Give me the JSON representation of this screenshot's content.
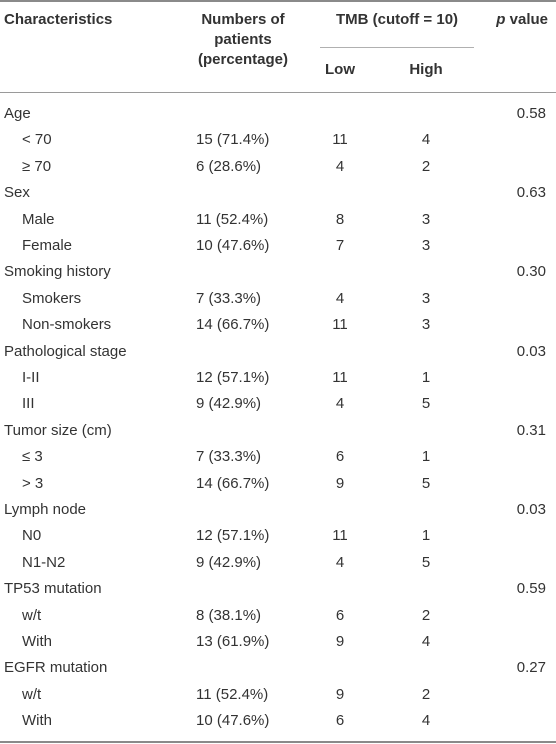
{
  "header": {
    "characteristics": "Characteristics",
    "numbers_line1": "Numbers of",
    "numbers_line2": "patients",
    "numbers_line3": "(percentage)",
    "tmb": "TMB (cutoff = 10)",
    "low": "Low",
    "high": "High",
    "p_italic": "p",
    "p_rest": " value"
  },
  "rows": [
    {
      "type": "group",
      "label": "Age",
      "p": "0.58"
    },
    {
      "type": "sub",
      "label": "< 70",
      "num": "15 (71.4%)",
      "low": "11",
      "high": "4"
    },
    {
      "type": "sub",
      "label": "≥ 70",
      "num": "6 (28.6%)",
      "low": "4",
      "high": "2"
    },
    {
      "type": "group",
      "label": "Sex",
      "p": "0.63"
    },
    {
      "type": "sub",
      "label": "Male",
      "num": "11 (52.4%)",
      "low": "8",
      "high": "3"
    },
    {
      "type": "sub",
      "label": "Female",
      "num": "10 (47.6%)",
      "low": "7",
      "high": "3"
    },
    {
      "type": "group",
      "label": "Smoking history",
      "p": "0.30"
    },
    {
      "type": "sub",
      "label": "Smokers",
      "num": "7 (33.3%)",
      "low": "4",
      "high": "3"
    },
    {
      "type": "sub",
      "label": "Non-smokers",
      "num": "14 (66.7%)",
      "low": "11",
      "high": "3"
    },
    {
      "type": "group",
      "label": "Pathological stage",
      "p": "0.03"
    },
    {
      "type": "sub",
      "label": "I-II",
      "num": "12 (57.1%)",
      "low": "11",
      "high": "1"
    },
    {
      "type": "sub",
      "label": "III",
      "num": "9 (42.9%)",
      "low": "4",
      "high": "5"
    },
    {
      "type": "group",
      "label": "Tumor size (cm)",
      "p": "0.31"
    },
    {
      "type": "sub",
      "label": "≤ 3",
      "num": "7 (33.3%)",
      "low": "6",
      "high": "1"
    },
    {
      "type": "sub",
      "label": "> 3",
      "num": "14 (66.7%)",
      "low": "9",
      "high": "5"
    },
    {
      "type": "group",
      "label": "Lymph node",
      "p": "0.03"
    },
    {
      "type": "sub",
      "label": "N0",
      "num": "12 (57.1%)",
      "low": "11",
      "high": "1"
    },
    {
      "type": "sub",
      "label": "N1-N2",
      "num": "9 (42.9%)",
      "low": "4",
      "high": "5"
    },
    {
      "type": "group",
      "label": "TP53 mutation",
      "p": "0.59"
    },
    {
      "type": "sub",
      "label": "w/t",
      "num": "8 (38.1%)",
      "low": "6",
      "high": "2"
    },
    {
      "type": "sub",
      "label": "With",
      "num": "13 (61.9%)",
      "low": "9",
      "high": "4"
    },
    {
      "type": "group",
      "label": "EGFR mutation",
      "p": "0.27"
    },
    {
      "type": "sub",
      "label": "w/t",
      "num": "11 (52.4%)",
      "low": "9",
      "high": "2"
    },
    {
      "type": "sub",
      "label": "With",
      "num": "10 (47.6%)",
      "low": "6",
      "high": "4"
    }
  ]
}
